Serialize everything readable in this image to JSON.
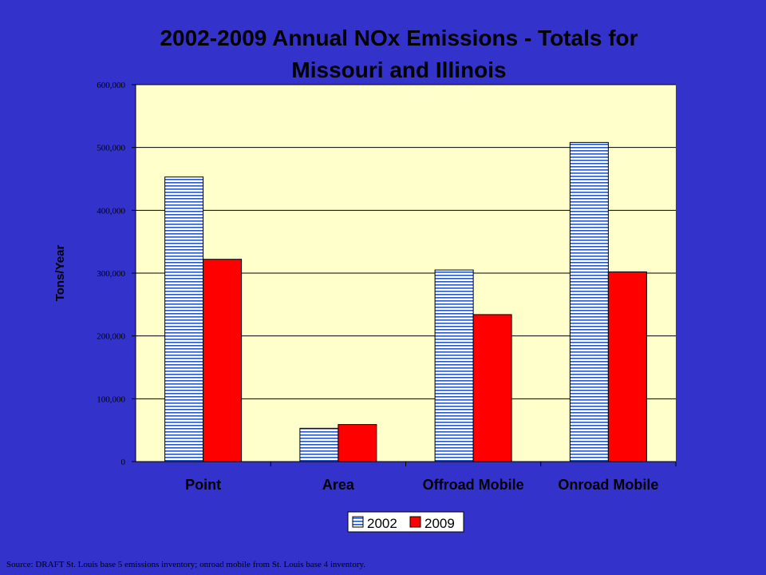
{
  "chart_data": {
    "type": "bar",
    "title_line1": "2002-2009 Annual NOx Emissions - Totals for",
    "title_line2": "Missouri and Illinois",
    "ylabel": "Tons/Year",
    "xlabel": "",
    "ylim": [
      0,
      600000
    ],
    "yticks": [
      0,
      100000,
      200000,
      300000,
      400000,
      500000,
      600000
    ],
    "ytick_labels": [
      "0",
      "100,000",
      "200,000",
      "300,000",
      "400,000",
      "500,000",
      "600,000"
    ],
    "categories": [
      "Point",
      "Area",
      "Offroad Mobile",
      "Onroad Mobile"
    ],
    "series": [
      {
        "name": "2002",
        "values": [
          453000,
          53000,
          305000,
          508000
        ],
        "color": "#ffffff",
        "pattern": "horizontal-stripes",
        "stripe_color": "#2255cc"
      },
      {
        "name": "2009",
        "values": [
          322000,
          59000,
          234000,
          302000
        ],
        "color": "#ff0000"
      }
    ],
    "grid": true,
    "legend_position": "bottom-center",
    "plot_background": "#ffffcc"
  },
  "source_note": "Source:  DRAFT St. Louis base 5 emissions inventory; onroad mobile from St. Louis base 4 inventory."
}
